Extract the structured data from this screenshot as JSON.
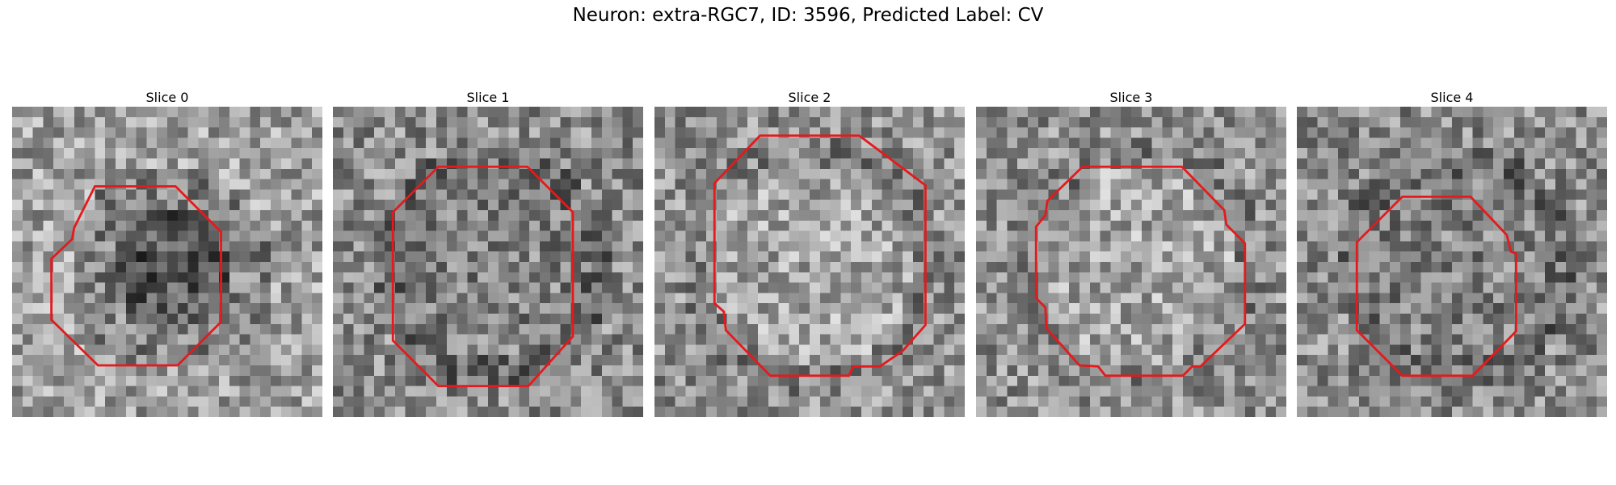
{
  "figure": {
    "title": "Neuron: extra-RGC7, ID: 3596, Predicted Label: CV"
  },
  "style": {
    "contour_color": "#e41a1c",
    "colormap": "grayscale"
  },
  "panels": [
    {
      "title": "Slice 0",
      "seed": 11,
      "tone": "dark-center"
    },
    {
      "title": "Slice 1",
      "seed": 23,
      "tone": "medium"
    },
    {
      "title": "Slice 2",
      "seed": 37,
      "tone": "light"
    },
    {
      "title": "Slice 3",
      "seed": 53,
      "tone": "light"
    },
    {
      "title": "Slice 4",
      "seed": 71,
      "tone": "medium"
    }
  ]
}
